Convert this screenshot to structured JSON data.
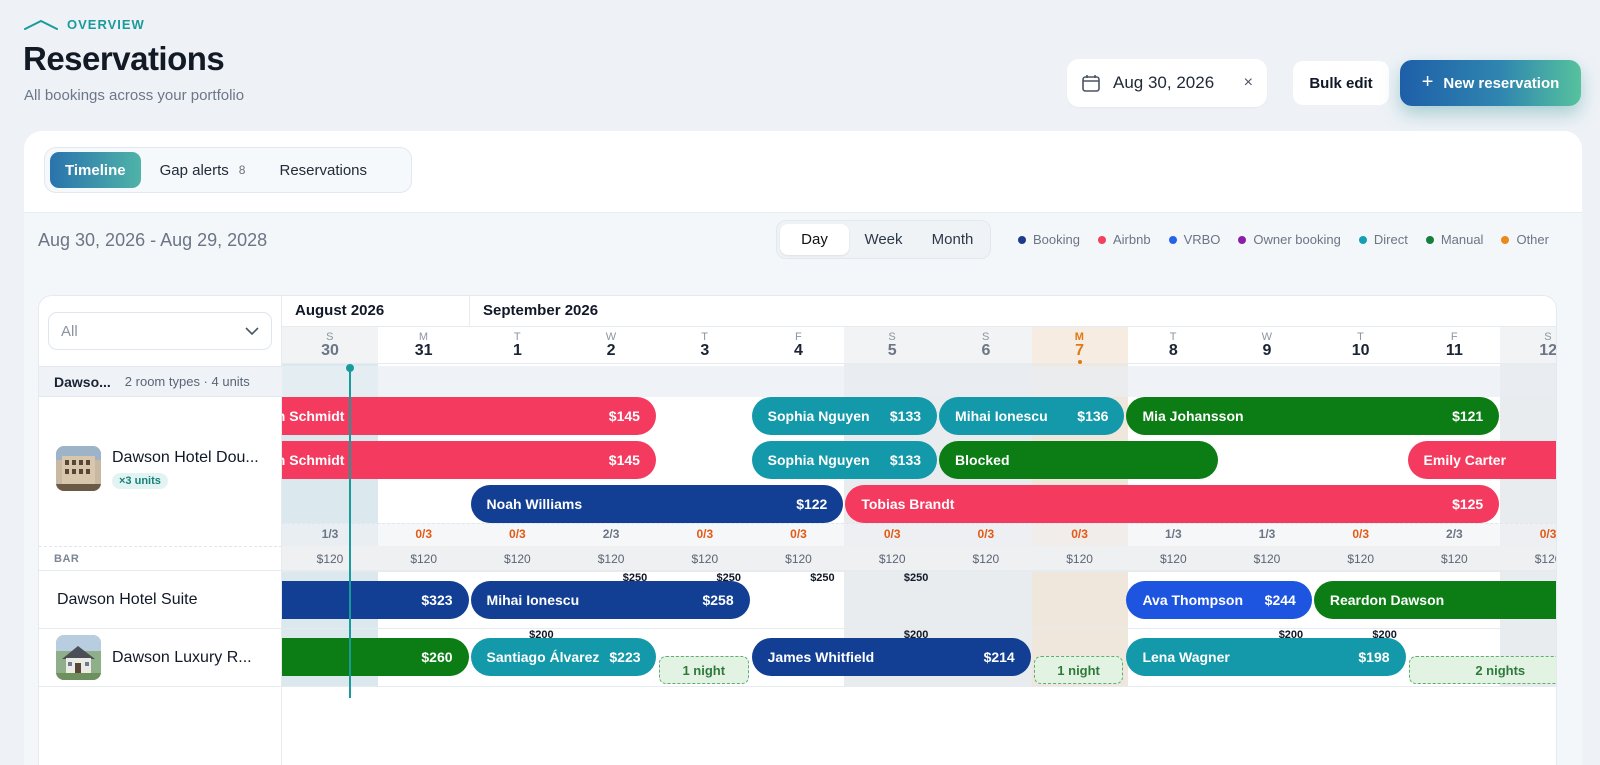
{
  "header": {
    "eyebrow": "OVERVIEW",
    "title": "Reservations",
    "subtitle": "All bookings across your portfolio",
    "date_value": "Aug 30, 2026",
    "date_clear": "×",
    "bulk_edit": "Bulk edit",
    "new_plus": "+",
    "new_reservation": "New reservation"
  },
  "tabs": [
    {
      "label": "Timeline",
      "active": true
    },
    {
      "label": "Gap alerts",
      "count": "8"
    },
    {
      "label": "Reservations"
    }
  ],
  "range": "Aug 30, 2026 - Aug 29, 2028",
  "view_modes": [
    {
      "label": "Day",
      "active": true
    },
    {
      "label": "Week"
    },
    {
      "label": "Month"
    }
  ],
  "legend": [
    {
      "label": "Booking",
      "color": "#1e3a8a"
    },
    {
      "label": "Airbnb",
      "color": "#f43f5e"
    },
    {
      "label": "VRBO",
      "color": "#2563eb"
    },
    {
      "label": "Owner booking",
      "color": "#8b1fa8"
    },
    {
      "label": "Direct",
      "color": "#14a0b4"
    },
    {
      "label": "Manual",
      "color": "#15803d"
    },
    {
      "label": "Other",
      "color": "#ea8a1a"
    }
  ],
  "filter": {
    "value": "All",
    "chevron": "⌄"
  },
  "group": {
    "name": "Dawso...",
    "meta": "2 room types · 4 units"
  },
  "properties": [
    {
      "name": "Dawson Hotel Dou...",
      "badge": "×3 units"
    },
    {
      "name": "Dawson Hotel Suite"
    },
    {
      "name": "Dawson Luxury R..."
    }
  ],
  "bar_label": "BAR",
  "months": [
    "August 2026",
    "September 2026"
  ],
  "days": [
    {
      "dow": "S",
      "num": "30",
      "weekend": true
    },
    {
      "dow": "M",
      "num": "31"
    },
    {
      "dow": "T",
      "num": "1"
    },
    {
      "dow": "W",
      "num": "2"
    },
    {
      "dow": "T",
      "num": "3"
    },
    {
      "dow": "F",
      "num": "4"
    },
    {
      "dow": "S",
      "num": "5",
      "weekend": true
    },
    {
      "dow": "S",
      "num": "6",
      "weekend": true
    },
    {
      "dow": "M",
      "num": "7",
      "today": true
    },
    {
      "dow": "T",
      "num": "8"
    },
    {
      "dow": "W",
      "num": "9"
    },
    {
      "dow": "T",
      "num": "10"
    },
    {
      "dow": "F",
      "num": "11"
    },
    {
      "dow": "S",
      "num": "12",
      "weekend": true
    }
  ],
  "occupancy": [
    "1/3",
    "0/3",
    "0/3",
    "2/3",
    "0/3",
    "0/3",
    "0/3",
    "0/3",
    "0/3",
    "1/3",
    "1/3",
    "0/3",
    "2/3",
    "0/3"
  ],
  "bar_prices": [
    "$120",
    "$120",
    "$120",
    "$120",
    "$120",
    "$120",
    "$120",
    "$120",
    "$120",
    "$120",
    "$120",
    "$120",
    "$120",
    "$120"
  ],
  "reservations": [
    {
      "guest": "ah Schmidt",
      "amount": "$145",
      "channel": "Airbnb",
      "row": 0,
      "start": -1,
      "end": 3.5
    },
    {
      "guest": "Sophia Nguyen",
      "amount": "$133",
      "channel": "Direct",
      "row": 0,
      "start": 4.5,
      "end": 6.5
    },
    {
      "guest": "Mihai Ionescu",
      "amount": "$136",
      "channel": "Direct",
      "row": 0,
      "start": 6.5,
      "end": 8.5
    },
    {
      "guest": "Mia Johansson",
      "amount": "$121",
      "channel": "Manual",
      "row": 0,
      "start": 8.5,
      "end": 12.5
    },
    {
      "guest": "ah Schmidt",
      "amount": "$145",
      "channel": "Airbnb",
      "row": 1,
      "start": -1,
      "end": 3.5
    },
    {
      "guest": "Sophia Nguyen",
      "amount": "$133",
      "channel": "Direct",
      "row": 1,
      "start": 4.5,
      "end": 6.5
    },
    {
      "guest": "Blocked",
      "amount": "",
      "channel": "Manual",
      "row": 1,
      "start": 6.5,
      "end": 9.5
    },
    {
      "guest": "Emily Carter",
      "amount": "",
      "channel": "Airbnb",
      "row": 1,
      "start": 11.5,
      "end": 14.5
    },
    {
      "guest": "Noah Williams",
      "amount": "$122",
      "channel": "Booking",
      "row": 2,
      "start": 1.5,
      "end": 5.5
    },
    {
      "guest": "Tobias Brandt",
      "amount": "$125",
      "channel": "Airbnb",
      "row": 2,
      "start": 5.5,
      "end": 12.5
    },
    {
      "guest": "",
      "amount": "$323",
      "channel": "Booking",
      "row": 3,
      "start": -1,
      "end": 1.5
    },
    {
      "guest": "Mihai Ionescu",
      "amount": "$258",
      "channel": "Booking",
      "row": 3,
      "start": 1.5,
      "end": 4.5
    },
    {
      "guest": "Ava Thompson",
      "amount": "$244",
      "channel": "VRBO",
      "row": 3,
      "start": 8.5,
      "end": 10.5
    },
    {
      "guest": "Reardon Dawson",
      "amount": "",
      "channel": "Manual",
      "row": 3,
      "start": 10.5,
      "end": 14.5
    },
    {
      "guest": "",
      "amount": "$260",
      "channel": "Manual",
      "row": 4,
      "start": -1,
      "end": 1.5
    },
    {
      "guest": "Santiago Álvarez",
      "amount": "$223",
      "channel": "Direct",
      "row": 4,
      "start": 1.5,
      "end": 3.5
    },
    {
      "guest": "James Whitfield",
      "amount": "$214",
      "channel": "Booking",
      "row": 4,
      "start": 4.5,
      "end": 7.5
    },
    {
      "guest": "Lena Wagner",
      "amount": "$198",
      "channel": "Direct",
      "row": 4,
      "start": 8.5,
      "end": 11.5
    }
  ],
  "gaps": [
    {
      "label": "1 night",
      "row": 4,
      "start": 3.5,
      "end": 4.5
    },
    {
      "label": "1 night",
      "row": 4,
      "start": 7.5,
      "end": 8.5
    },
    {
      "label": "2 nights",
      "row": 4,
      "start": 11.5,
      "end": 13.5
    }
  ],
  "open_prices": [
    {
      "value": "$250",
      "row": 3,
      "col": 4
    },
    {
      "value": "$250",
      "row": 3,
      "col": 5
    },
    {
      "value": "$250",
      "row": 3,
      "col": 6
    },
    {
      "value": "$250",
      "row": 3,
      "col": 7
    },
    {
      "value": "$200",
      "row": 4,
      "col": 3
    },
    {
      "value": "$200",
      "row": 4,
      "col": 7
    },
    {
      "value": "$200",
      "row": 4,
      "col": 11
    },
    {
      "value": "$200",
      "row": 4,
      "col": 12
    }
  ],
  "colors": {
    "Booking": "#123f93",
    "Airbnb": "#f43a5e",
    "VRBO": "#1d55e0",
    "Direct": "#1399a9",
    "Manual": "#0b7d14",
    "accent": "#1a9b9b"
  }
}
